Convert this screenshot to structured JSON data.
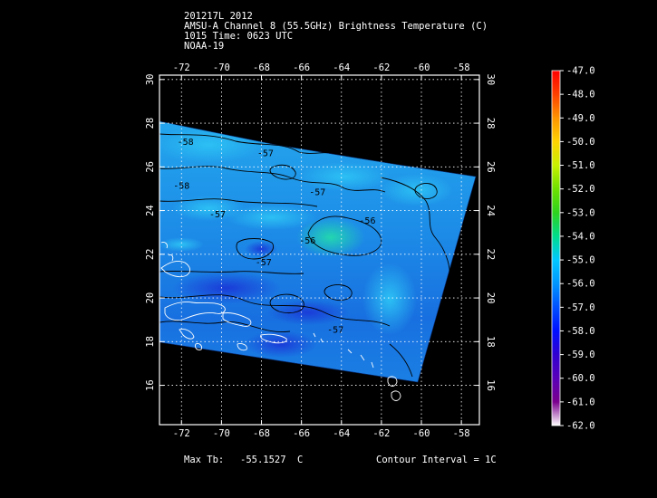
{
  "header": {
    "line1": "201217L 2012",
    "line2": "AMSU-A Channel 8 (55.5GHz) Brightness Temperature (C)",
    "line3": "1015 Time: 0623 UTC",
    "line4": "NOAA-19"
  },
  "map": {
    "lon_ticks": [
      -72,
      -70,
      -68,
      -66,
      -64,
      -62,
      -60,
      -58
    ],
    "lat_ticks": [
      30,
      28,
      26,
      24,
      22,
      20,
      18,
      16
    ],
    "lon_range": [
      -73.1,
      -57.1
    ],
    "lat_range": [
      14.2,
      30.2
    ],
    "contour_labels": [
      {
        "text": "-58",
        "lon": -72.0,
        "lat": 25.0
      },
      {
        "text": "-58",
        "lon": -71.8,
        "lat": 27.0
      },
      {
        "text": "-57",
        "lon": -67.8,
        "lat": 26.5
      },
      {
        "text": "-57",
        "lon": -65.2,
        "lat": 24.7
      },
      {
        "text": "-57",
        "lon": -70.2,
        "lat": 23.7
      },
      {
        "text": "-56",
        "lon": -62.7,
        "lat": 23.4
      },
      {
        "text": "-56",
        "lon": -65.7,
        "lat": 22.5
      },
      {
        "text": "-57",
        "lon": -67.9,
        "lat": 21.5
      },
      {
        "text": "-57",
        "lon": -64.3,
        "lat": 18.4
      }
    ]
  },
  "colorbar": {
    "labels": [
      "-47.0",
      "-48.0",
      "-49.0",
      "-50.0",
      "-51.0",
      "-52.0",
      "-53.0",
      "-54.0",
      "-55.0",
      "-56.0",
      "-57.0",
      "-58.0",
      "-59.0",
      "-60.0",
      "-61.0",
      "-62.0"
    ],
    "colors": [
      "#ff0000",
      "#ff4000",
      "#ff9500",
      "#ffd200",
      "#c8f000",
      "#6ee000",
      "#2ed21e",
      "#00dc8c",
      "#00c8ff",
      "#0096ff",
      "#0050ff",
      "#0010ff",
      "#3000d0",
      "#5800b8",
      "#7a008e",
      "#ffffff"
    ]
  },
  "footer": {
    "max_tb_label": "Max Tb:",
    "max_tb_value": "-55.1527",
    "max_tb_unit": "C",
    "contour_interval": "Contour Interval = 1C"
  }
}
